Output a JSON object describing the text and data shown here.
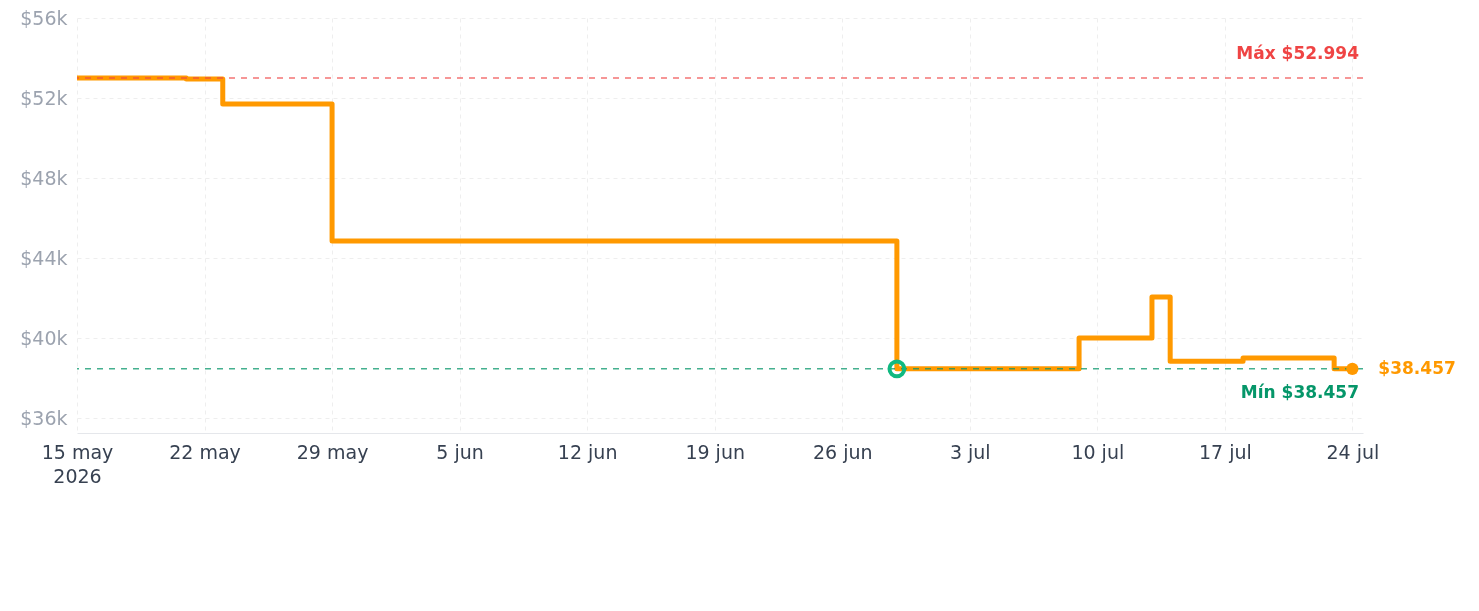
{
  "chart_data": {
    "type": "step",
    "x": [
      "2026-05-15",
      "2026-05-21",
      "2026-05-23",
      "2026-05-29",
      "2026-06-29",
      "2026-07-09",
      "2026-07-13",
      "2026-07-14",
      "2026-07-18",
      "2026-07-23",
      "2026-07-24"
    ],
    "series": [
      {
        "color": "#ff9900",
        "marker": "none",
        "values": [
          52994,
          52950,
          51700,
          44850,
          38457,
          40000,
          42050,
          38840,
          39000,
          38457,
          38457
        ]
      },
      {
        "type": "scatter",
        "color": "#10b981",
        "marker": "circle",
        "x": [
          "2026-06-29"
        ],
        "values": [
          38457
        ]
      },
      {
        "type": "scatter",
        "color": "#ff9900",
        "marker": "circle",
        "x": [
          "2026-07-24"
        ],
        "values": [
          38457
        ],
        "value_labels": [
          "$38.457"
        ]
      }
    ],
    "xlim": [
      "2026-05-15",
      "2026-07-24T14:00"
    ],
    "xticks": [
      {
        "value": "2026-05-15",
        "label": "15 may\n2026"
      },
      {
        "value": "2026-05-22",
        "label": "22 may"
      },
      {
        "value": "2026-05-29",
        "label": "29 may"
      },
      {
        "value": "2026-06-05",
        "label": "5 jun"
      },
      {
        "value": "2026-06-12",
        "label": "12 jun"
      },
      {
        "value": "2026-06-19",
        "label": "19 jun"
      },
      {
        "value": "2026-06-26",
        "label": "26 jun"
      },
      {
        "value": "2026-07-03",
        "label": "3 jul"
      },
      {
        "value": "2026-07-10",
        "label": "10 jul"
      },
      {
        "value": "2026-07-17",
        "label": "17 jul"
      },
      {
        "value": "2026-07-24",
        "label": "24 jul"
      }
    ],
    "ylim": [
      35250,
      56000
    ],
    "yticks": [
      {
        "value": 36000,
        "label": "$36k"
      },
      {
        "value": 40000,
        "label": "$40k"
      },
      {
        "value": 44000,
        "label": "$44k"
      },
      {
        "value": 48000,
        "label": "$48k"
      },
      {
        "value": 52000,
        "label": "$52k"
      },
      {
        "value": 56000,
        "label": "$56k"
      }
    ],
    "ref_lines": [
      {
        "axis": "y",
        "value": 52994,
        "label": "Máx $52.994",
        "color": "#ef4444",
        "line_style": "dashed"
      },
      {
        "axis": "y",
        "value": 38457,
        "label": "Mín $38.457",
        "color": "#059669",
        "line_style": "dashed"
      }
    ],
    "grid": true,
    "line_style": "solid"
  }
}
